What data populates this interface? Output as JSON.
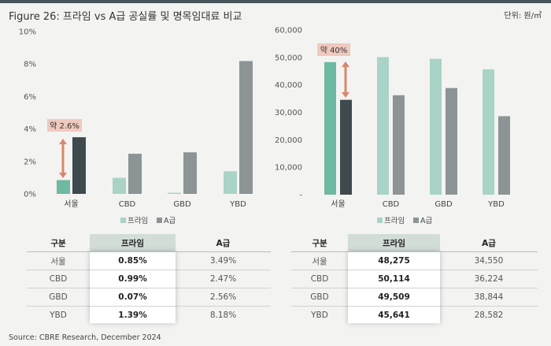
{
  "title": "Figure 26: 프라임 vs A급 공실률 및 명목임대료 비교",
  "unit_label": "단위: 원/㎡",
  "source": "Source: CBRE Research, December 2024",
  "colors": {
    "prime": "#a9d3c6",
    "prime_highlight": "#6fb8a1",
    "a_grade": "#8c9495",
    "a_highlight": "#3e4a4e",
    "arrow": "#d9886b",
    "callout_bg": "#f0c9be",
    "table_prime_header": "#d2ddd8"
  },
  "chart_data": [
    {
      "type": "bar",
      "categories": [
        "서울",
        "CBD",
        "GBD",
        "YBD"
      ],
      "series": [
        {
          "name": "프라임",
          "values": [
            0.85,
            0.99,
            0.07,
            1.39
          ]
        },
        {
          "name": "A급",
          "values": [
            3.49,
            2.47,
            2.56,
            8.18
          ]
        }
      ],
      "ylim": [
        0,
        10
      ],
      "yticks": [
        "0%",
        "2%",
        "4%",
        "6%",
        "8%",
        "10%"
      ],
      "legend": [
        "프라임",
        "A급"
      ],
      "annotation": "약 2.6%",
      "grid": false
    },
    {
      "type": "bar",
      "categories": [
        "서울",
        "CBD",
        "GBD",
        "YBD"
      ],
      "series": [
        {
          "name": "프라임",
          "values": [
            48275,
            50114,
            49509,
            45641
          ]
        },
        {
          "name": "A급",
          "values": [
            34550,
            36224,
            38844,
            28582
          ]
        }
      ],
      "ylim": [
        0,
        60000
      ],
      "yticks": [
        "-",
        "10,000",
        "20,000",
        "30,000",
        "40,000",
        "50,000",
        "60,000"
      ],
      "legend": [
        "프라임",
        "A급"
      ],
      "annotation": "약 40%",
      "grid": false
    }
  ],
  "tables": [
    {
      "headers": [
        "구분",
        "프라임",
        "A급"
      ],
      "rows": [
        [
          "서울",
          "0.85%",
          "3.49%"
        ],
        [
          "CBD",
          "0.99%",
          "2.47%"
        ],
        [
          "GBD",
          "0.07%",
          "2.56%"
        ],
        [
          "YBD",
          "1.39%",
          "8.18%"
        ]
      ]
    },
    {
      "headers": [
        "구분",
        "프라임",
        "A급"
      ],
      "rows": [
        [
          "서울",
          "48,275",
          "34,550"
        ],
        [
          "CBD",
          "50,114",
          "36,224"
        ],
        [
          "GBD",
          "49,509",
          "38,844"
        ],
        [
          "YBD",
          "45,641",
          "28,582"
        ]
      ]
    }
  ]
}
